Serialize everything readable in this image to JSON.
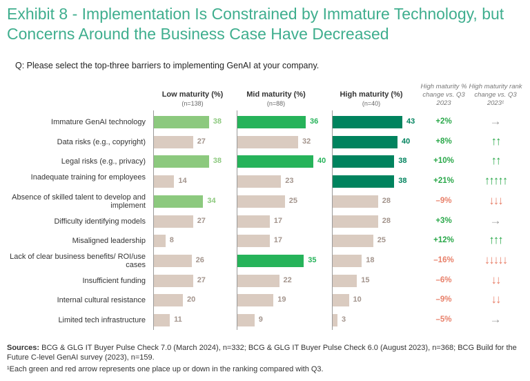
{
  "title": "Exhibit 8 - Implementation Is Constrained by Immature Technology, but Concerns Around the Business Case Have Decreased",
  "question": "Q: Please select the top-three barriers to implementing GenAI at your company.",
  "colors": {
    "low": "#8cc97e",
    "mid": "#26b35a",
    "high": "#00835e",
    "neutral": "#dacbc0",
    "neutral_text": "#a3948c",
    "up": "#2aa84a",
    "down": "#e8806a",
    "flat": "#999999"
  },
  "chart_data": {
    "type": "bar",
    "categories": [
      "Immature GenAI technology",
      "Data risks (e.g., copyright)",
      "Legal risks (e.g., privacy)",
      "Inadequate training for employees",
      "Absence of skilled talent to develop and implement",
      "Difficulty identifying models",
      "Misaligned leadership",
      "Lack of clear business benefits/ ROI/use cases",
      "Insufficient funding",
      "Internal cultural resistance",
      "Limited tech infrastructure"
    ],
    "series": [
      {
        "name": "Low maturity (%)",
        "n": "(n=138)",
        "values": [
          38,
          27,
          38,
          14,
          34,
          27,
          8,
          26,
          27,
          20,
          11
        ],
        "highlight": [
          0,
          2,
          4
        ]
      },
      {
        "name": "Mid maturity (%)",
        "n": "(n=88)",
        "values": [
          36,
          32,
          40,
          23,
          25,
          17,
          17,
          35,
          22,
          19,
          9
        ],
        "highlight": [
          0,
          2,
          7
        ]
      },
      {
        "name": "High maturity (%)",
        "n": "(n=40)",
        "values": [
          43,
          40,
          38,
          38,
          28,
          28,
          25,
          18,
          15,
          10,
          3
        ],
        "highlight": [
          0,
          1,
          2,
          3
        ]
      }
    ],
    "pct_change_header": "High maturity % change vs. Q3 2023",
    "pct_change": [
      "+2%",
      "+8%",
      "+10%",
      "+21%",
      "–9%",
      "+3%",
      "+12%",
      "–16%",
      "–6%",
      "–9%",
      "–5%"
    ],
    "rank_change_header": "High maturity rank change vs. Q3 2023¹",
    "rank_change": [
      0,
      2,
      2,
      5,
      -3,
      0,
      3,
      -5,
      -2,
      -2,
      0
    ]
  },
  "sources_label": "Sources:",
  "sources": "BCG & GLG IT Buyer Pulse Check 7.0 (March 2024), n=332; BCG & GLG IT Buyer Pulse Check 6.0 (August 2023), n=368; BCG Build for the Future C-level GenAI survey (2023), n=159.",
  "footnote": "¹Each green and red arrow represents one place up or down in the ranking compared with Q3."
}
